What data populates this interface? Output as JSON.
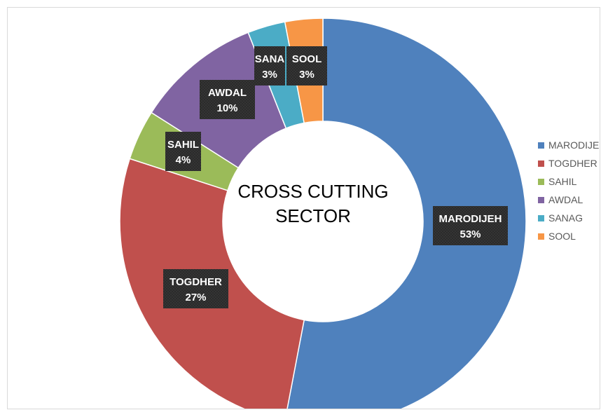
{
  "chart_data": {
    "type": "pie",
    "style": "donut",
    "center_title": [
      "CROSS CUTTING",
      "SECTOR"
    ],
    "legend_position": "right",
    "slices": [
      {
        "name": "MARODIJEH",
        "label": "MARODIJEH",
        "percent_label": "53%",
        "value": 53,
        "color": "#4f81bd"
      },
      {
        "name": "TOGDHER",
        "label": "TOGDHER",
        "percent_label": "27%",
        "value": 27,
        "color": "#c0504d"
      },
      {
        "name": "SAHIL",
        "label": "SAHIL",
        "percent_label": "4%",
        "value": 4,
        "color": "#9bbb59"
      },
      {
        "name": "AWDAL",
        "label": "AWDAL",
        "percent_label": "10%",
        "value": 10,
        "color": "#8064a2"
      },
      {
        "name": "SANAG",
        "label": "SANA",
        "percent_label": "3%",
        "value": 3,
        "color": "#4bacc6"
      },
      {
        "name": "SOOL",
        "label": "SOOL",
        "percent_label": "3%",
        "value": 3,
        "color": "#f79646"
      }
    ]
  }
}
